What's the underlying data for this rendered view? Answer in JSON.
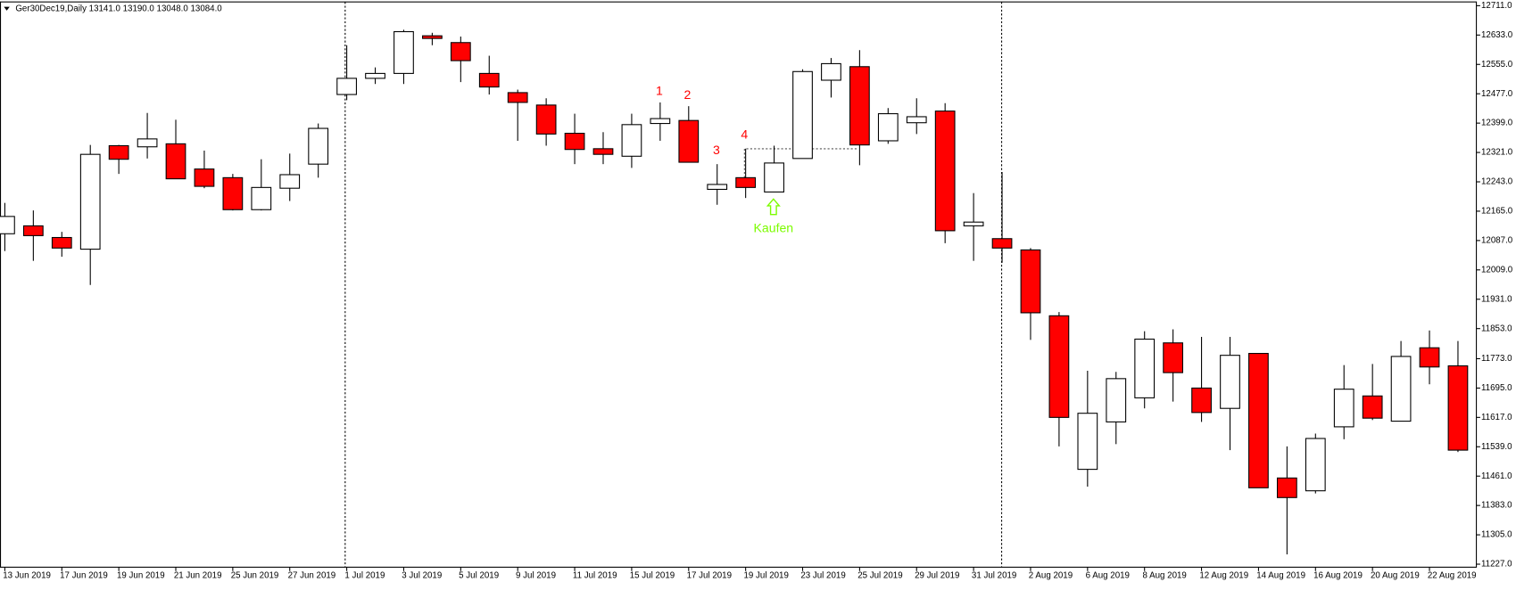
{
  "chart_data": {
    "type": "candlestick",
    "title": "Ger30Dec19,Daily  13141.0 13190.0 13048.0 13084.0",
    "categories": [
      "13 Jun 2019",
      null,
      "17 Jun 2019",
      null,
      "19 Jun 2019",
      null,
      "21 Jun 2019",
      null,
      "25 Jun 2019",
      null,
      "27 Jun 2019",
      null,
      "1 Jul 2019",
      null,
      "3 Jul 2019",
      null,
      "5 Jul 2019",
      null,
      "9 Jul 2019",
      null,
      "11 Jul 2019",
      null,
      "15 Jul 2019",
      null,
      "17 Jul 2019",
      null,
      "19 Jul 2019",
      null,
      "23 Jul 2019",
      null,
      "25 Jul 2019",
      null,
      "29 Jul 2019",
      null,
      "31 Jul 2019",
      null,
      "2 Aug 2019",
      null,
      "6 Aug 2019",
      null,
      "8 Aug 2019",
      null,
      "12 Aug 2019",
      null,
      "14 Aug 2019",
      null,
      "16 Aug 2019",
      null,
      "20 Aug 2019",
      null,
      "22 Aug 2019",
      null
    ],
    "series": [
      {
        "open": [
          12105,
          12126,
          12095,
          12064,
          12339,
          12336,
          12344,
          12277,
          12254,
          12169,
          12226,
          12290,
          12475,
          12518,
          12531,
          12631,
          12613,
          12531,
          12480,
          12447,
          12372,
          12331,
          12311,
          12398,
          12406,
          12223,
          12254,
          12216,
          12305,
          12513,
          12549,
          12352,
          12400,
          12431,
          12126,
          12092,
          12062,
          11887,
          11479,
          11605,
          11669,
          11815,
          11695,
          11641,
          11787,
          11456,
          11422,
          11592,
          11674,
          11607,
          11802,
          11754
        ],
        "high": [
          12187,
          12167,
          12110,
          12341,
          12341,
          12426,
          12408,
          12326,
          12264,
          12303,
          12318,
          12398,
          12606,
          12547,
          12647,
          12639,
          12629,
          12578,
          12488,
          12465,
          12424,
          12375,
          12424,
          12454,
          12444,
          12290,
          12331,
          12339,
          12542,
          12572,
          12593,
          12439,
          12465,
          12452,
          12213,
          12269,
          12067,
          11897,
          11741,
          11738,
          11846,
          11851,
          11831,
          11831,
          11787,
          11540,
          11574,
          11756,
          11759,
          11820,
          11848,
          11820
        ],
        "low": [
          12059,
          12033,
          12044,
          11969,
          12264,
          12305,
          12251,
          12226,
          12167,
          12167,
          12192,
          12254,
          12460,
          12503,
          12503,
          12606,
          12508,
          12475,
          12352,
          12339,
          12290,
          12290,
          12280,
          12352,
          12295,
          12182,
          12200,
          12216,
          12305,
          12467,
          12287,
          12344,
          12370,
          12080,
          12033,
          12028,
          11823,
          11540,
          11433,
          11546,
          11641,
          11659,
          11605,
          11530,
          11430,
          11253,
          11415,
          11559,
          11610,
          11607,
          11705,
          11525
        ],
        "close": [
          12151,
          12100,
          12067,
          12316,
          12303,
          12357,
          12251,
          12231,
          12169,
          12228,
          12262,
          12385,
          12518,
          12531,
          12642,
          12624,
          12565,
          12495,
          12454,
          12370,
          12329,
          12316,
          12395,
          12411,
          12295,
          12236,
          12228,
          12293,
          12536,
          12557,
          12341,
          12424,
          12416,
          12113,
          12136,
          12067,
          11895,
          11617,
          11628,
          11720,
          11825,
          11736,
          11630,
          11782,
          11430,
          11404,
          11561,
          11692,
          11615,
          11779,
          11751,
          11530
        ]
      }
    ],
    "up_color": "#ffffff",
    "down_color": "#ff0000",
    "outline_color": "#000000",
    "ylim": [
      11219,
      12721
    ],
    "yticks": [
      {
        "value": 12711,
        "label": "12711.0"
      },
      {
        "value": 12633,
        "label": "12633.0"
      },
      {
        "value": 12555,
        "label": "12555.0"
      },
      {
        "value": 12477,
        "label": "12477.0"
      },
      {
        "value": 12399,
        "label": "12399.0"
      },
      {
        "value": 12321,
        "label": "12321.0"
      },
      {
        "value": 12243,
        "label": "12243.0"
      },
      {
        "value": 12165,
        "label": "12165.0"
      },
      {
        "value": 12087,
        "label": "12087.0"
      },
      {
        "value": 12009,
        "label": "12009.0"
      },
      {
        "value": 11931,
        "label": "11931.0"
      },
      {
        "value": 11853,
        "label": "11853.0"
      },
      {
        "value": 11773,
        "label": "11773.0"
      },
      {
        "value": 11695,
        "label": "11695.0"
      },
      {
        "value": 11617,
        "label": "11617.0"
      },
      {
        "value": 11539,
        "label": "11539.0"
      },
      {
        "value": 11461,
        "label": "11461.0"
      },
      {
        "value": 11383,
        "label": "11383.0"
      },
      {
        "value": 11305,
        "label": "11305.0"
      },
      {
        "value": 11227,
        "label": "11227.0"
      }
    ],
    "annotations": [
      "1",
      "2",
      "3",
      "4",
      "Kaufen"
    ],
    "annotation_colors": [
      "#ff0000",
      "#ff0000",
      "#ff0000",
      "#ff0000",
      "#7cfc00"
    ]
  }
}
